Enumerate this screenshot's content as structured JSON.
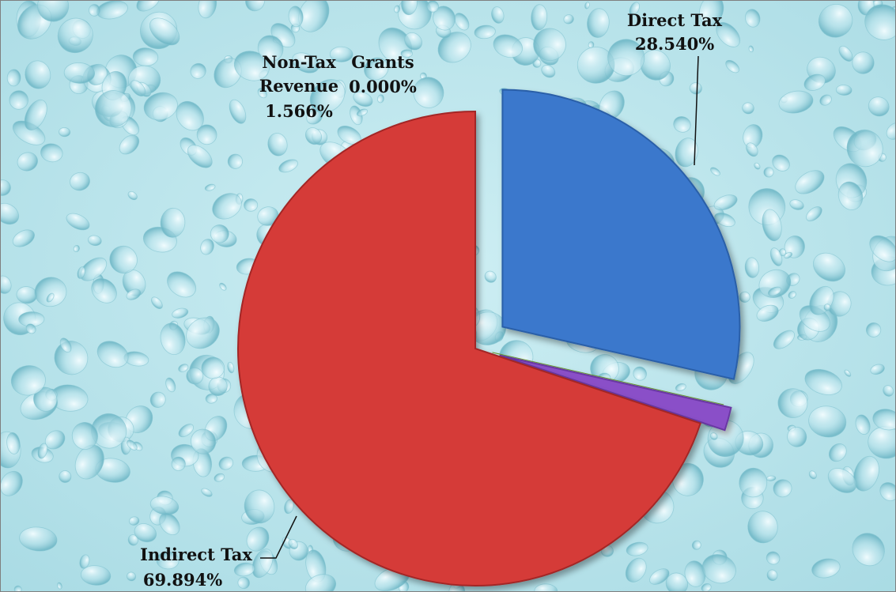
{
  "chart_data": {
    "type": "pie",
    "title": "",
    "exploded": true,
    "background": "water-droplets",
    "slices": [
      {
        "label": "Direct Tax",
        "value_label": "28.540%",
        "value": 28.54,
        "color": "#3a78cc",
        "edge_color": "#2a5fa8"
      },
      {
        "label": "Indirect Tax",
        "value_label": "69.894%",
        "value": 69.894,
        "color": "#d53b38",
        "edge_color": "#a32825"
      },
      {
        "label": "Non-Tax Revenue",
        "label_lines": [
          "Non-Tax",
          "Revenue"
        ],
        "value_label": "1.566%",
        "value": 1.566,
        "color": "#8a4fc8",
        "edge_color": "#6a37a3"
      },
      {
        "label": "Grants",
        "value_label": "0.000%",
        "value": 0.0,
        "color": "#8cba47",
        "edge_color": "#6a9a2c"
      }
    ]
  }
}
